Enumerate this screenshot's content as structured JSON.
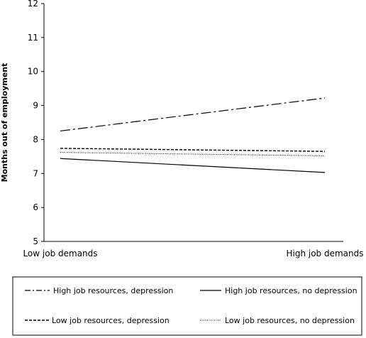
{
  "chart_data": {
    "type": "line",
    "title": "",
    "xlabel": "",
    "ylabel": "Months out of employment",
    "categories": [
      "Low job demands",
      "High job demands"
    ],
    "ylim": [
      5,
      12
    ],
    "yticks": [
      5,
      6,
      7,
      8,
      9,
      10,
      11,
      12
    ],
    "grid": false,
    "legend_position": "bottom",
    "series": [
      {
        "name": "High job resources, depression",
        "values": [
          8.25,
          9.22
        ],
        "color": "#000000",
        "style": "dash-dot"
      },
      {
        "name": "High job resources, no depression",
        "values": [
          7.44,
          7.03
        ],
        "color": "#000000",
        "style": "solid"
      },
      {
        "name": "Low job resources, depression",
        "values": [
          7.74,
          7.65
        ],
        "color": "#000000",
        "style": "dashed"
      },
      {
        "name": "Low job resources, no depression",
        "values": [
          7.62,
          7.52
        ],
        "color": "#000000",
        "style": "dotted"
      }
    ]
  }
}
